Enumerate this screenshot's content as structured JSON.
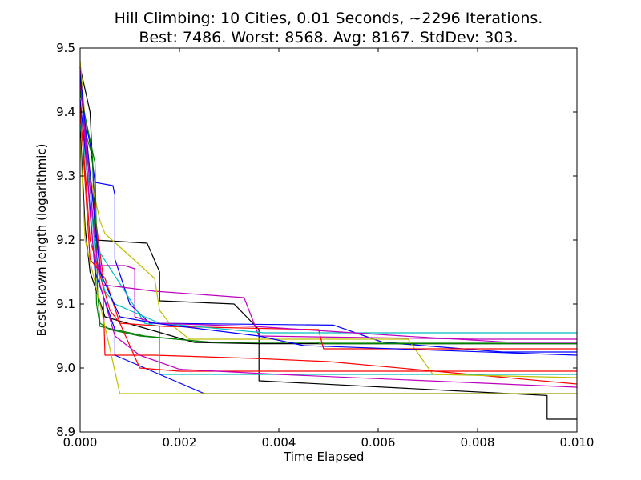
{
  "chart_data": {
    "type": "line",
    "title_lines": [
      "Hill Climbing: 10 Cities, 0.01 Seconds, ~2296 Iterations.",
      "Best: 7486. Worst: 8568. Avg: 8167. StdDev: 303."
    ],
    "xlabel": "Time Elapsed",
    "ylabel": "Best known length (logarithmic)",
    "xlim": [
      0.0,
      0.01
    ],
    "ylim": [
      8.9,
      9.5
    ],
    "xticks": [
      "0.000",
      "0.002",
      "0.004",
      "0.006",
      "0.008",
      "0.010"
    ],
    "yticks": [
      "8.9",
      "9.0",
      "9.1",
      "9.2",
      "9.3",
      "9.4",
      "9.5"
    ],
    "grid": false,
    "legend": "none",
    "series": [
      {
        "color": "#000000",
        "points": [
          [
            0.0,
            9.47
          ],
          [
            0.0002,
            9.4
          ],
          [
            0.00032,
            9.21
          ],
          [
            0.0003,
            9.2
          ],
          [
            0.00135,
            9.195
          ],
          [
            0.0016,
            9.15
          ],
          [
            0.0016,
            9.105
          ],
          [
            0.0031,
            9.1
          ],
          [
            0.0036,
            9.06
          ],
          [
            0.0036,
            8.98
          ],
          [
            0.0094,
            8.957
          ],
          [
            0.0094,
            8.92
          ],
          [
            0.01,
            8.92
          ]
        ]
      },
      {
        "color": "#0000ff",
        "points": [
          [
            0.0,
            9.47
          ],
          [
            0.0001,
            9.39
          ],
          [
            0.0002,
            9.35
          ],
          [
            0.0003,
            9.29
          ],
          [
            0.00066,
            9.285
          ],
          [
            0.0007,
            9.27
          ],
          [
            0.0007,
            9.17
          ],
          [
            0.001,
            9.1
          ],
          [
            0.0014,
            9.07
          ],
          [
            0.0051,
            9.067
          ],
          [
            0.0061,
            9.04
          ],
          [
            0.0085,
            9.025
          ],
          [
            0.01,
            9.025
          ]
        ]
      },
      {
        "color": "#008000",
        "points": [
          [
            0.0,
            9.44
          ],
          [
            0.0001,
            9.37
          ],
          [
            0.00025,
            9.33
          ],
          [
            0.00033,
            9.1
          ],
          [
            0.0004,
            9.065
          ],
          [
            0.0013,
            9.05
          ],
          [
            0.0026,
            9.04
          ],
          [
            0.01,
            9.04
          ]
        ]
      },
      {
        "color": "#ff0000",
        "points": [
          [
            0.0,
            9.47
          ],
          [
            0.0001,
            9.35
          ],
          [
            0.0002,
            9.3
          ],
          [
            0.00045,
            9.15
          ],
          [
            0.0005,
            9.02
          ],
          [
            0.0015,
            9.02
          ],
          [
            0.0035,
            9.015
          ],
          [
            0.005,
            9.01
          ],
          [
            0.01,
            8.975
          ]
        ]
      },
      {
        "color": "#00bfbf",
        "points": [
          [
            0.0,
            9.42
          ],
          [
            0.0002,
            9.25
          ],
          [
            0.0004,
            9.18
          ],
          [
            0.0009,
            9.12
          ],
          [
            0.0013,
            9.07
          ],
          [
            0.0016,
            9.065
          ],
          [
            0.0016,
            8.99
          ],
          [
            0.0047,
            8.99
          ],
          [
            0.01,
            8.99
          ]
        ]
      },
      {
        "color": "#bf00bf",
        "points": [
          [
            0.0,
            9.46
          ],
          [
            0.0002,
            9.3
          ],
          [
            0.00045,
            9.13
          ],
          [
            0.0015,
            9.12
          ],
          [
            0.0033,
            9.11
          ],
          [
            0.0036,
            9.05
          ],
          [
            0.008,
            9.045
          ],
          [
            0.01,
            9.045
          ]
        ]
      },
      {
        "color": "#bfbf00",
        "points": [
          [
            0.0,
            9.48
          ],
          [
            0.0002,
            9.3
          ],
          [
            0.0004,
            9.23
          ],
          [
            0.0005,
            9.21
          ],
          [
            0.0015,
            9.14
          ],
          [
            0.0016,
            9.09
          ],
          [
            0.0018,
            9.07
          ],
          [
            0.0022,
            9.045
          ],
          [
            0.0066,
            9.045
          ],
          [
            0.0071,
            8.99
          ],
          [
            0.01,
            8.985
          ]
        ]
      },
      {
        "color": "#000000",
        "points": [
          [
            0.0,
            9.38
          ],
          [
            0.0001,
            9.22
          ],
          [
            0.0002,
            9.15
          ],
          [
            0.0005,
            9.08
          ],
          [
            0.0023,
            9.04
          ],
          [
            0.0036,
            9.038
          ],
          [
            0.01,
            9.038
          ]
        ]
      },
      {
        "color": "#0000ff",
        "points": [
          [
            0.0,
            9.42
          ],
          [
            0.00015,
            9.3
          ],
          [
            0.0003,
            9.15
          ],
          [
            0.0007,
            9.06
          ],
          [
            0.0007,
            9.02
          ],
          [
            0.0025,
            8.96
          ],
          [
            0.01,
            8.96
          ]
        ]
      },
      {
        "color": "#008000",
        "points": [
          [
            0.0,
            9.43
          ],
          [
            0.0003,
            9.32
          ],
          [
            0.00035,
            9.12
          ],
          [
            0.0004,
            9.07
          ],
          [
            0.0006,
            9.06
          ],
          [
            0.0012,
            9.05
          ],
          [
            0.0027,
            9.04
          ],
          [
            0.0048,
            9.04
          ],
          [
            0.0048,
            9.038
          ],
          [
            0.01,
            9.038
          ]
        ]
      },
      {
        "color": "#ff0000",
        "points": [
          [
            0.0,
            9.4
          ],
          [
            0.0001,
            9.31
          ],
          [
            0.0002,
            9.2
          ],
          [
            0.0006,
            9.09
          ],
          [
            0.0008,
            9.07
          ],
          [
            0.0017,
            9.065
          ],
          [
            0.0048,
            9.06
          ],
          [
            0.0049,
            9.03
          ],
          [
            0.0051,
            9.03
          ],
          [
            0.01,
            9.03
          ]
        ]
      },
      {
        "color": "#00bfbf",
        "points": [
          [
            0.0,
            9.38
          ],
          [
            0.0002,
            9.28
          ],
          [
            0.0003,
            9.18
          ],
          [
            0.0005,
            9.12
          ],
          [
            0.0007,
            9.1
          ],
          [
            0.0016,
            9.07
          ],
          [
            0.0037,
            9.055
          ],
          [
            0.01,
            9.055
          ]
        ]
      },
      {
        "color": "#bf00bf",
        "points": [
          [
            0.0,
            9.47
          ],
          [
            0.0002,
            9.24
          ],
          [
            0.0003,
            9.16
          ],
          [
            0.0006,
            9.16
          ],
          [
            0.0009,
            9.16
          ],
          [
            0.0011,
            9.155
          ],
          [
            0.0011,
            9.08
          ],
          [
            0.0015,
            9.07
          ],
          [
            0.0035,
            9.065
          ],
          [
            0.0045,
            9.06
          ],
          [
            0.0065,
            9.05
          ],
          [
            0.0087,
            9.04
          ],
          [
            0.01,
            9.04
          ]
        ]
      },
      {
        "color": "#bfbf00",
        "points": [
          [
            0.0,
            9.36
          ],
          [
            0.0001,
            9.2
          ],
          [
            0.0004,
            9.1
          ],
          [
            0.0008,
            8.96
          ],
          [
            0.0015,
            8.96
          ],
          [
            0.01,
            8.96
          ]
        ]
      },
      {
        "color": "#ff0000",
        "points": [
          [
            0.0,
            9.41
          ],
          [
            0.0002,
            9.17
          ],
          [
            0.0005,
            9.14
          ],
          [
            0.0008,
            9.07
          ],
          [
            0.0012,
            9.0
          ],
          [
            0.002,
            8.995
          ],
          [
            0.008,
            8.995
          ],
          [
            0.01,
            8.995
          ]
        ]
      },
      {
        "color": "#bf00bf",
        "points": [
          [
            0.0,
            9.45
          ],
          [
            0.0003,
            9.2
          ],
          [
            0.0004,
            9.13
          ],
          [
            0.0007,
            9.05
          ],
          [
            0.0012,
            9.02
          ],
          [
            0.002,
            8.998
          ],
          [
            0.004,
            8.99
          ],
          [
            0.01,
            8.97
          ]
        ]
      },
      {
        "color": "#0000ff",
        "points": [
          [
            0.0,
            9.46
          ],
          [
            0.0004,
            9.15
          ],
          [
            0.0008,
            9.08
          ],
          [
            0.0015,
            9.07
          ],
          [
            0.0036,
            9.05
          ],
          [
            0.0045,
            9.035
          ],
          [
            0.01,
            9.02
          ]
        ]
      }
    ]
  }
}
